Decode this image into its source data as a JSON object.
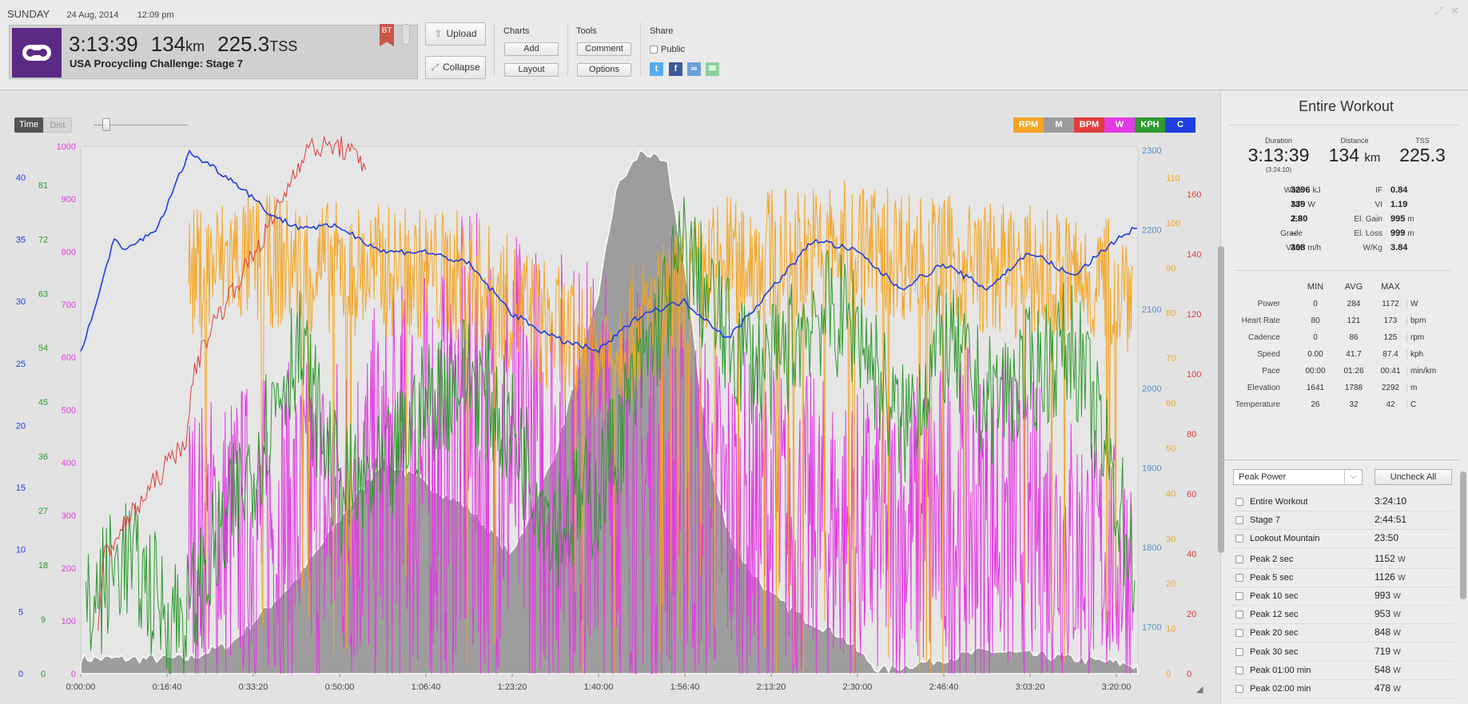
{
  "header": {
    "day": "SUNDAY",
    "date": "24 Aug, 2014",
    "time": "12:09 pm",
    "duration": "3:13:39",
    "distance_value": "134",
    "distance_unit": "km",
    "tss_value": "225.3",
    "tss_unit": "TSS",
    "workout_title": "USA Procycling Challenge: Stage 7",
    "badge": "BT"
  },
  "toolbar": {
    "upload_label": "Upload",
    "collapse_label": "Collapse",
    "charts_label": "Charts",
    "add_label": "Add",
    "layout_label": "Layout",
    "tools_label": "Tools",
    "comment_label": "Comment",
    "options_label": "Options",
    "share_label": "Share",
    "public_label": "Public"
  },
  "chart_controls": {
    "time_label": "Time",
    "dist_label": "Dist",
    "legend": [
      {
        "label": "RPM",
        "color": "#f5a623"
      },
      {
        "label": "M",
        "color": "#9b9b9b"
      },
      {
        "label": "BPM",
        "color": "#e03c3c"
      },
      {
        "label": "W",
        "color": "#e23be2"
      },
      {
        "label": "KPH",
        "color": "#2f9a2f"
      },
      {
        "label": "C",
        "color": "#1f3fe0"
      }
    ]
  },
  "chart_data": {
    "type": "line",
    "x_ticks": [
      "0:00:00",
      "0:16:40",
      "0:33:20",
      "0:50:00",
      "1:06:40",
      "1:23:20",
      "1:40:00",
      "1:56:40",
      "2:13:20",
      "2:30:00",
      "2:46:40",
      "3:03:20",
      "3:20:00"
    ],
    "xlim_seconds": [
      0,
      12250
    ],
    "axes": {
      "temp_c": {
        "ticks": [
          "0",
          "5",
          "10",
          "15",
          "20",
          "25",
          "30",
          "35",
          "40"
        ],
        "range": [
          0,
          42.5
        ],
        "color": "#1f3fe0"
      },
      "speed_kph": {
        "ticks": [
          "0",
          "9",
          "18",
          "27",
          "36",
          "45",
          "54",
          "63",
          "72",
          "81"
        ],
        "range": [
          0,
          87.4
        ],
        "color": "#2f9a2f"
      },
      "power_w": {
        "ticks": [
          "0",
          "100",
          "200",
          "300",
          "400",
          "500",
          "600",
          "700",
          "800",
          "900",
          "1000"
        ],
        "range": [
          0,
          1000
        ],
        "color": "#e23be2"
      },
      "elevation_m": {
        "ticks": [
          "1700",
          "1800",
          "1900",
          "2000",
          "2100",
          "2200",
          "2300"
        ],
        "range": [
          1641,
          2305
        ],
        "color": "#5b8fc7"
      },
      "cadence_rpm": {
        "ticks": [
          "0",
          "10",
          "20",
          "30",
          "40",
          "50",
          "60",
          "70",
          "80",
          "90",
          "100",
          "110"
        ],
        "range": [
          0,
          117
        ],
        "color": "#f5a623"
      },
      "heart_bpm": {
        "ticks": [
          "0",
          "20",
          "40",
          "60",
          "80",
          "100",
          "120",
          "140",
          "160"
        ],
        "range": [
          0,
          176
        ],
        "color": "#e03c3c"
      }
    },
    "series": [
      {
        "name": "RPM",
        "color": "#f5a623",
        "axis": "cadence_rpm",
        "band": [
          60,
          112
        ],
        "x": [
          0,
          600,
          1250,
          1750,
          3000,
          4500,
          6000,
          7500,
          9000,
          10500,
          12250
        ],
        "y": [
          80,
          82,
          88,
          92,
          90,
          88,
          70,
          92,
          95,
          90,
          86
        ]
      },
      {
        "name": "M",
        "color": "#9b9b9b",
        "axis": "elevation_m",
        "x": [
          0,
          1250,
          1750,
          2500,
          3500,
          4500,
          5000,
          5500,
          6000,
          6200,
          6500,
          6800,
          7000,
          7300,
          7500,
          7700,
          8000,
          8400,
          8800,
          9250,
          9500,
          10000,
          10500,
          11000,
          11500,
          12000,
          12250
        ],
        "y": [
          1660,
          1660,
          1680,
          1760,
          1910,
          1850,
          1790,
          1920,
          2120,
          2250,
          2300,
          2280,
          2150,
          1900,
          1820,
          1780,
          1740,
          1710,
          1690,
          1645,
          1650,
          1660,
          1670,
          1665,
          1660,
          1655,
          1650
        ]
      },
      {
        "name": "BPM",
        "color": "#e03c3c",
        "axis": "heart_bpm",
        "x": [
          200,
          280,
          1250,
          1300,
          1500,
          1800,
          2200,
          2600,
          3000,
          3300
        ],
        "y": [
          15,
          40,
          80,
          100,
          115,
          130,
          150,
          175,
          176,
          170
        ]
      },
      {
        "name": "W",
        "color": "#e23be2",
        "axis": "power_w",
        "band": [
          0,
          480
        ],
        "x": [
          0,
          1250,
          3000,
          4500,
          6000,
          7500,
          9000,
          10500,
          12250
        ],
        "y": [
          60,
          250,
          300,
          420,
          380,
          300,
          260,
          300,
          200
        ]
      },
      {
        "name": "KPH",
        "color": "#2f9a2f",
        "axis": "speed_kph",
        "x": [
          0,
          500,
          1000,
          1250,
          2000,
          2500,
          3000,
          3500,
          4000,
          4500,
          5000,
          5500,
          6000,
          6500,
          7000,
          7500,
          8000,
          8500,
          9000,
          9500,
          10000,
          10500,
          11000,
          11500,
          12000,
          12250
        ],
        "y": [
          8,
          20,
          10,
          10,
          35,
          55,
          30,
          32,
          45,
          50,
          40,
          25,
          30,
          50,
          70,
          55,
          50,
          60,
          58,
          40,
          55,
          45,
          50,
          55,
          30,
          15
        ]
      },
      {
        "name": "C",
        "color": "#1f3fe0",
        "axis": "temp_c",
        "x": [
          0,
          150,
          380,
          500,
          900,
          1250,
          1500,
          1700,
          1900,
          2200,
          2500,
          3000,
          3500,
          4000,
          4500,
          5000,
          5500,
          6000,
          6500,
          7000,
          7500,
          8000,
          8500,
          9000,
          9500,
          10000,
          10500,
          11000,
          11500,
          12000,
          12250
        ],
        "y": [
          26,
          29,
          35,
          34,
          36,
          42,
          41,
          40,
          39,
          37,
          36,
          36,
          34,
          34,
          33,
          29,
          27,
          26,
          29,
          30,
          27,
          31,
          35,
          34,
          31,
          33,
          31,
          34,
          32,
          35,
          36
        ]
      }
    ]
  },
  "panel": {
    "title": "Entire Workout",
    "duration_label": "Duration",
    "duration_value": "3:13:39",
    "duration_sub": "(3:24:10)",
    "distance_label": "Distance",
    "distance_value": "134",
    "distance_unit": "km",
    "tss_label": "TSS",
    "tss_value": "225.3",
    "stats_left": [
      {
        "label": "Work",
        "value": "3296",
        "unit": "kJ"
      },
      {
        "label": "NP",
        "value": "339",
        "unit": "W"
      },
      {
        "label": "EF",
        "value": "2.80",
        "unit": ""
      },
      {
        "label": "Grade",
        "value": "--",
        "unit": ""
      },
      {
        "label": "VAM",
        "value": "308",
        "unit": "m/h"
      }
    ],
    "stats_right": [
      {
        "label": "IF",
        "value": "0.84",
        "unit": ""
      },
      {
        "label": "VI",
        "value": "1.19",
        "unit": ""
      },
      {
        "label": "El. Gain",
        "value": "995",
        "unit": "m"
      },
      {
        "label": "El. Loss",
        "value": "999",
        "unit": "m"
      },
      {
        "label": "W/Kg",
        "value": "3.84",
        "unit": ""
      }
    ],
    "minmax_headers": [
      "MIN",
      "AVG",
      "MAX"
    ],
    "minmax_rows": [
      {
        "label": "Power",
        "min": "0",
        "avg": "284",
        "max": "1172",
        "unit": "W"
      },
      {
        "label": "Heart Rate",
        "min": "80",
        "avg": "121",
        "max": "173",
        "unit": "bpm"
      },
      {
        "label": "Cadence",
        "min": "0",
        "avg": "86",
        "max": "125",
        "unit": "rpm"
      },
      {
        "label": "Speed",
        "min": "0.00",
        "avg": "41.7",
        "max": "87.4",
        "unit": "kph"
      },
      {
        "label": "Pace",
        "min": "00:00",
        "avg": "01:26",
        "max": "00:41",
        "unit": "min/km"
      },
      {
        "label": "Elevation",
        "min": "1641",
        "avg": "1788",
        "max": "2292",
        "unit": "m"
      },
      {
        "label": "Temperature",
        "min": "26",
        "avg": "32",
        "max": "42",
        "unit": "C"
      }
    ],
    "range_select": "Peak Power",
    "uncheck_label": "Uncheck All",
    "ranges": [
      {
        "name": "Entire Workout",
        "value": "3:24:10",
        "unit": ""
      },
      {
        "name": "Stage 7",
        "value": "2:44:51",
        "unit": ""
      },
      {
        "name": "Lookout Mountain",
        "value": "23:50",
        "unit": ""
      },
      {
        "name": "Peak 2 sec",
        "value": "1152",
        "unit": "W"
      },
      {
        "name": "Peak 5 sec",
        "value": "1126",
        "unit": "W"
      },
      {
        "name": "Peak 10 sec",
        "value": "993",
        "unit": "W"
      },
      {
        "name": "Peak 12 sec",
        "value": "953",
        "unit": "W"
      },
      {
        "name": "Peak 20 sec",
        "value": "848",
        "unit": "W"
      },
      {
        "name": "Peak 30 sec",
        "value": "719",
        "unit": "W"
      },
      {
        "name": "Peak 01:00 min",
        "value": "548",
        "unit": "W"
      },
      {
        "name": "Peak 02:00 min",
        "value": "478",
        "unit": "W"
      }
    ]
  }
}
